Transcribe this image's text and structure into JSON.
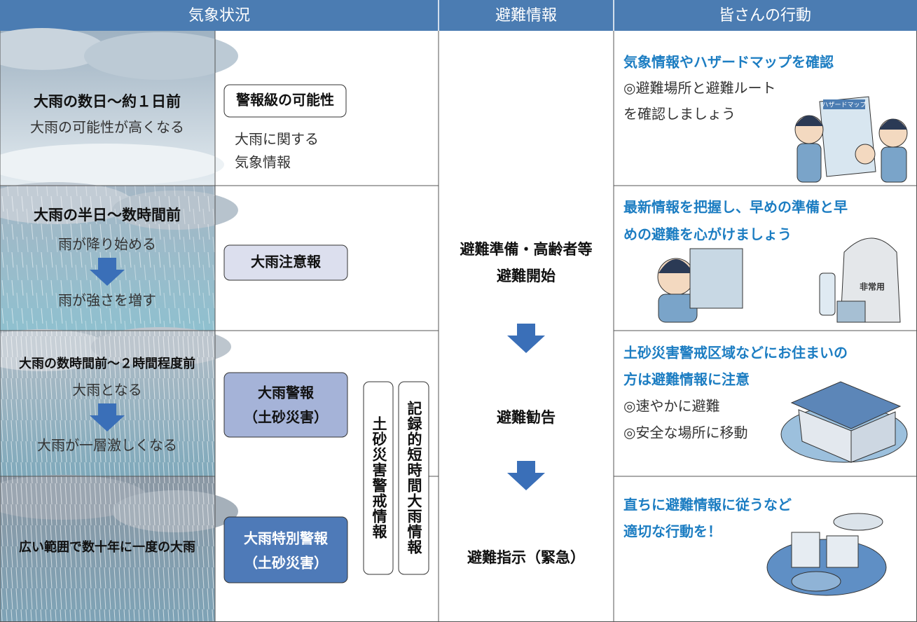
{
  "header": [
    "気象状況",
    "避難情報",
    "皆さんの行動"
  ],
  "rows": [
    {
      "weather": {
        "title": "大雨の数日〜約１日前",
        "lines": [
          "大雨の可能性が高くなる"
        ]
      },
      "warning": {
        "box": [
          "警報級の可能性"
        ],
        "note": [
          "大雨に関する",
          "気象情報"
        ]
      },
      "action": {
        "heading": [
          "気象情報やハザードマップを確認"
        ],
        "body": [
          "◎避難場所と避難ルート",
          "を確認しましょう"
        ]
      }
    },
    {
      "weather": {
        "title": "大雨の半日〜数時間前",
        "lines": [
          "雨が降り始める",
          "雨が強さを増す"
        ]
      },
      "warning": {
        "box": [
          "大雨注意報"
        ]
      },
      "action": {
        "heading": [
          "最新情報を把握し、早めの準備と早",
          "めの避難を心がけましょう"
        ]
      }
    },
    {
      "weather": {
        "title": "大雨の数時間前〜２時間程度前",
        "lines": [
          "大雨となる",
          "大雨が一層激しくなる"
        ]
      },
      "warning": {
        "box": [
          "大雨警報",
          "（土砂災害）"
        ]
      },
      "action": {
        "heading": [
          "土砂災害警戒区域などにお住まいの",
          "方は避難情報に注意"
        ],
        "body": [
          "◎速やかに避難",
          "◎安全な場所に移動"
        ]
      }
    },
    {
      "weather": {
        "title": "広い範囲で数十年に一度の大雨"
      },
      "warning": {
        "box": [
          "大雨特別警報",
          "（土砂災害）"
        ]
      },
      "action": {
        "heading": [
          "直ちに避難情報に従うなど",
          "適切な行動を！"
        ]
      }
    }
  ],
  "vertical_info": [
    "土砂災害警戒情報",
    "記録的短時間大雨情報"
  ],
  "evacuation": [
    [
      "避難準備・高齢者等",
      "避難開始"
    ],
    [
      "避難勧告"
    ],
    [
      "避難指示（緊急）"
    ]
  ],
  "illustration_labels": [
    "ハザードマップ",
    "非常用"
  ]
}
